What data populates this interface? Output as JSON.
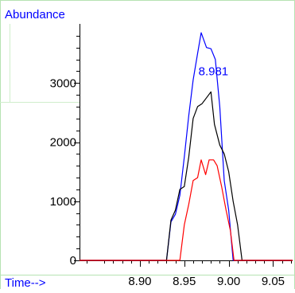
{
  "chart_data": {
    "type": "line",
    "ylabel": "Abundance",
    "xlabel": "Time-->",
    "xlim": [
      8.832,
      9.072
    ],
    "ylim": [
      0,
      4000
    ],
    "x_ticks": [
      8.9,
      8.95,
      9.0,
      9.05
    ],
    "x_tick_labels": [
      "8.90",
      "8.95",
      "9.00",
      "9.05"
    ],
    "y_ticks": [
      0,
      1000,
      2000,
      3000
    ],
    "y_tick_labels": [
      "0",
      "1000",
      "2000",
      "3000"
    ],
    "grid": false,
    "legend": "none",
    "annotations": [
      {
        "text": "8.981",
        "x": 8.981,
        "y": 3200,
        "color": "#0000ff"
      }
    ],
    "series": [
      {
        "color": "#0000ff",
        "points": [
          [
            8.832,
            0
          ],
          [
            8.93,
            0
          ],
          [
            8.935,
            650
          ],
          [
            8.94,
            780
          ],
          [
            8.945,
            1100
          ],
          [
            8.95,
            1750
          ],
          [
            8.955,
            2450
          ],
          [
            8.96,
            3050
          ],
          [
            8.965,
            3500
          ],
          [
            8.969,
            3850
          ],
          [
            8.975,
            3600
          ],
          [
            8.98,
            3580
          ],
          [
            8.985,
            3400
          ],
          [
            8.99,
            2600
          ],
          [
            8.995,
            1350
          ],
          [
            9.0,
            850
          ],
          [
            9.005,
            0
          ],
          [
            9.072,
            0
          ]
        ]
      },
      {
        "color": "#000000",
        "points": [
          [
            8.832,
            0
          ],
          [
            8.93,
            0
          ],
          [
            8.935,
            680
          ],
          [
            8.94,
            850
          ],
          [
            8.945,
            1200
          ],
          [
            8.95,
            1250
          ],
          [
            8.955,
            1750
          ],
          [
            8.96,
            2400
          ],
          [
            8.965,
            2600
          ],
          [
            8.97,
            2650
          ],
          [
            8.975,
            2750
          ],
          [
            8.98,
            2850
          ],
          [
            8.984,
            2300
          ],
          [
            8.99,
            1950
          ],
          [
            8.995,
            1800
          ],
          [
            9.0,
            1500
          ],
          [
            9.005,
            1000
          ],
          [
            9.01,
            600
          ],
          [
            9.015,
            0
          ],
          [
            9.072,
            0
          ]
        ]
      },
      {
        "color": "#ff0000",
        "points": [
          [
            8.832,
            0
          ],
          [
            8.945,
            0
          ],
          [
            8.95,
            600
          ],
          [
            8.955,
            950
          ],
          [
            8.96,
            1350
          ],
          [
            8.965,
            1400
          ],
          [
            8.969,
            1700
          ],
          [
            8.974,
            1450
          ],
          [
            8.978,
            1700
          ],
          [
            8.983,
            1700
          ],
          [
            8.987,
            1600
          ],
          [
            8.992,
            1250
          ],
          [
            8.997,
            850
          ],
          [
            9.002,
            500
          ],
          [
            9.006,
            0
          ],
          [
            9.072,
            0
          ]
        ]
      }
    ]
  }
}
